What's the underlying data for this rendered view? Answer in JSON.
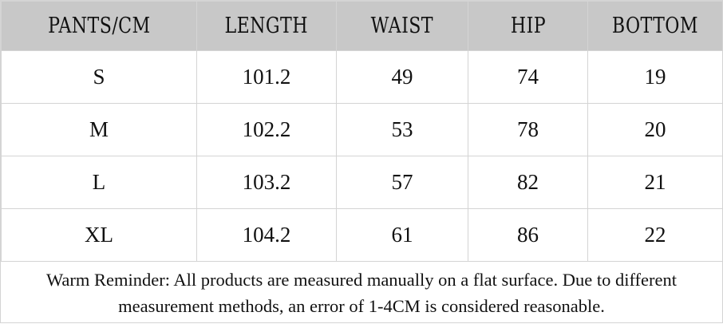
{
  "table": {
    "header": [
      "PANTS/CM",
      "LENGTH",
      "WAIST",
      "HIP",
      "BOTTOM"
    ],
    "rows": [
      [
        "S",
        "101.2",
        "49",
        "74",
        "19"
      ],
      [
        "M",
        "102.2",
        "53",
        "78",
        "20"
      ],
      [
        "L",
        "103.2",
        "57",
        "82",
        "21"
      ],
      [
        "XL",
        "104.2",
        "61",
        "86",
        "22"
      ]
    ],
    "note": "Warm Reminder: All products are measured manually on a flat surface. Due to different measurement methods, an error of 1-4CM is considered reasonable."
  }
}
